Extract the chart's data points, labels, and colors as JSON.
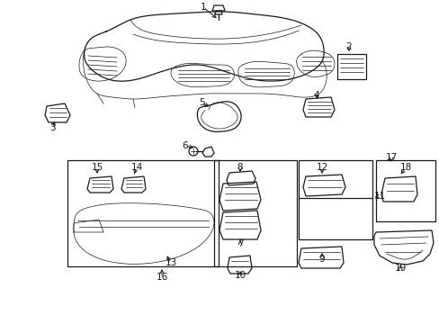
{
  "bg_color": "#ffffff",
  "line_color": "#1a1a1a",
  "figsize": [
    4.89,
    3.6
  ],
  "dpi": 100,
  "lw_main": 0.9,
  "lw_thin": 0.5,
  "font_size": 7.5
}
